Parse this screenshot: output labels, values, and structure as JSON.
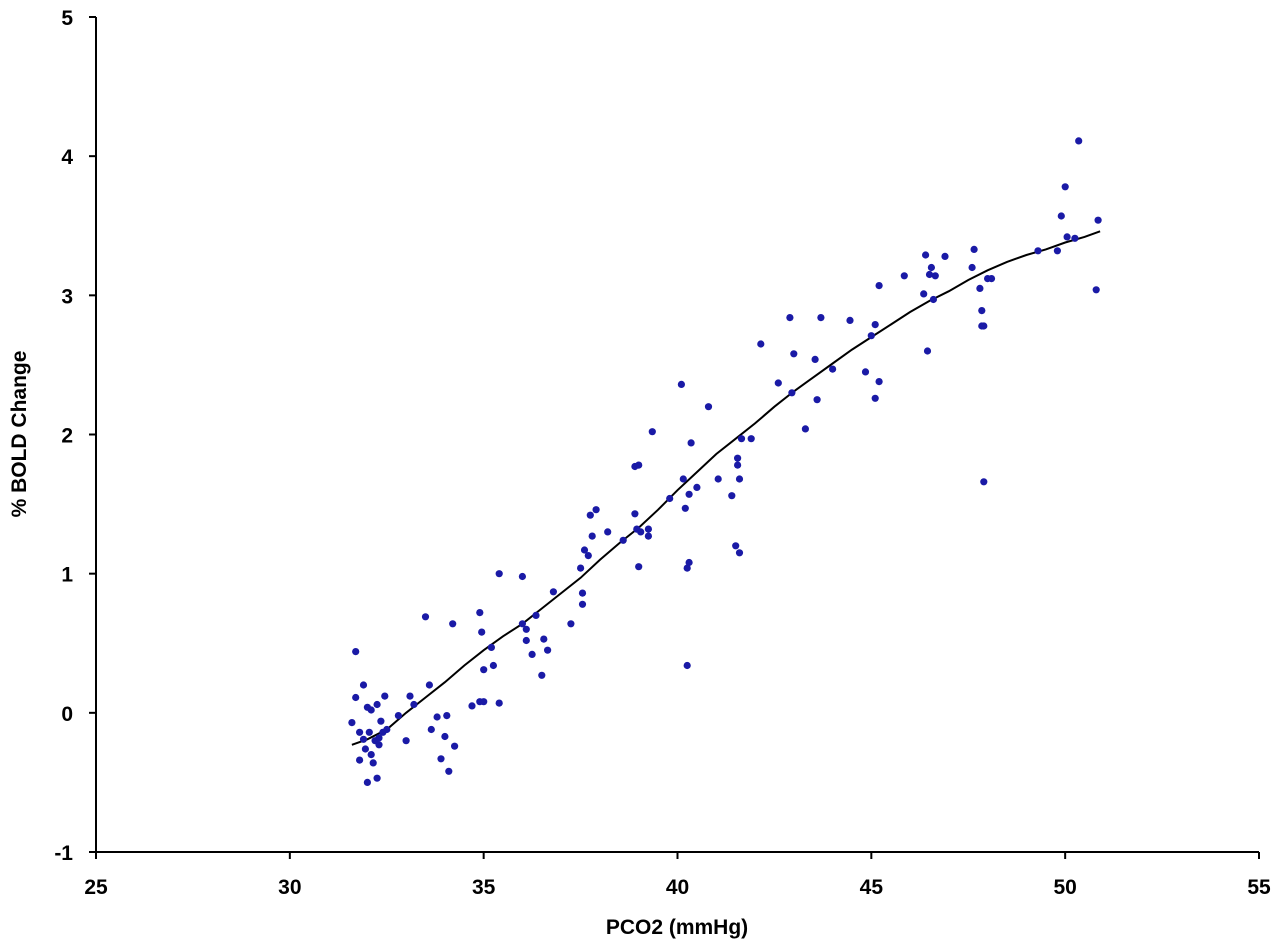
{
  "chart_data": {
    "type": "scatter",
    "title": "",
    "xlabel": "PCO2 (mmHg)",
    "ylabel": "% BOLD Change",
    "xlim": [
      25,
      55
    ],
    "ylim": [
      -1,
      5
    ],
    "x_ticks": [
      "25",
      "30",
      "35",
      "40",
      "45",
      "50",
      "55"
    ],
    "y_ticks": [
      "-1",
      "0",
      "1",
      "2",
      "3",
      "4",
      "5"
    ],
    "grid": false,
    "legend": "none",
    "marker_color": "#1a1aa6",
    "line_color": "#000000",
    "series": [
      {
        "kind": "points",
        "points": [
          [
            31.6,
            -0.07
          ],
          [
            31.7,
            0.44
          ],
          [
            31.7,
            0.11
          ],
          [
            31.8,
            -0.34
          ],
          [
            31.8,
            -0.14
          ],
          [
            31.9,
            0.2
          ],
          [
            31.9,
            -0.19
          ],
          [
            31.95,
            -0.26
          ],
          [
            32.0,
            0.04
          ],
          [
            32.0,
            -0.5
          ],
          [
            32.05,
            -0.14
          ],
          [
            32.1,
            -0.3
          ],
          [
            32.1,
            0.02
          ],
          [
            32.15,
            -0.36
          ],
          [
            32.2,
            -0.2
          ],
          [
            32.25,
            0.06
          ],
          [
            32.25,
            -0.47
          ],
          [
            32.3,
            -0.18
          ],
          [
            32.3,
            -0.23
          ],
          [
            32.35,
            -0.06
          ],
          [
            32.4,
            -0.14
          ],
          [
            32.45,
            0.12
          ],
          [
            32.5,
            -0.12
          ],
          [
            32.8,
            -0.02
          ],
          [
            33.0,
            -0.2
          ],
          [
            33.1,
            0.12
          ],
          [
            33.2,
            0.06
          ],
          [
            33.5,
            0.69
          ],
          [
            33.6,
            0.2
          ],
          [
            33.65,
            -0.12
          ],
          [
            33.8,
            -0.03
          ],
          [
            33.9,
            -0.33
          ],
          [
            34.0,
            -0.17
          ],
          [
            34.05,
            -0.02
          ],
          [
            34.1,
            -0.42
          ],
          [
            34.2,
            0.64
          ],
          [
            34.25,
            -0.24
          ],
          [
            34.7,
            0.05
          ],
          [
            34.9,
            0.72
          ],
          [
            34.9,
            0.08
          ],
          [
            34.95,
            0.58
          ],
          [
            35.0,
            0.08
          ],
          [
            35.0,
            0.31
          ],
          [
            35.2,
            0.47
          ],
          [
            35.25,
            0.34
          ],
          [
            35.4,
            0.07
          ],
          [
            35.4,
            1.0
          ],
          [
            36.0,
            0.98
          ],
          [
            36.0,
            0.64
          ],
          [
            36.1,
            0.6
          ],
          [
            36.1,
            0.52
          ],
          [
            36.25,
            0.42
          ],
          [
            36.35,
            0.7
          ],
          [
            36.5,
            0.27
          ],
          [
            36.55,
            0.53
          ],
          [
            36.65,
            0.45
          ],
          [
            36.8,
            0.87
          ],
          [
            37.25,
            0.64
          ],
          [
            37.5,
            1.04
          ],
          [
            37.55,
            0.86
          ],
          [
            37.55,
            0.78
          ],
          [
            37.6,
            1.17
          ],
          [
            37.7,
            1.13
          ],
          [
            37.75,
            1.42
          ],
          [
            37.8,
            1.27
          ],
          [
            37.9,
            1.46
          ],
          [
            38.2,
            1.3
          ],
          [
            38.6,
            1.24
          ],
          [
            38.9,
            1.43
          ],
          [
            38.9,
            1.77
          ],
          [
            38.95,
            1.32
          ],
          [
            39.0,
            1.78
          ],
          [
            39.0,
            1.05
          ],
          [
            39.05,
            1.3
          ],
          [
            39.25,
            1.32
          ],
          [
            39.25,
            1.27
          ],
          [
            39.35,
            2.02
          ],
          [
            39.8,
            1.54
          ],
          [
            40.1,
            2.36
          ],
          [
            40.15,
            1.68
          ],
          [
            40.2,
            1.47
          ],
          [
            40.25,
            1.04
          ],
          [
            40.25,
            0.34
          ],
          [
            40.3,
            1.08
          ],
          [
            40.3,
            1.57
          ],
          [
            40.35,
            1.94
          ],
          [
            40.5,
            1.62
          ],
          [
            40.8,
            2.2
          ],
          [
            41.05,
            1.68
          ],
          [
            41.4,
            1.56
          ],
          [
            41.5,
            1.2
          ],
          [
            41.55,
            1.83
          ],
          [
            41.55,
            1.78
          ],
          [
            41.6,
            1.68
          ],
          [
            41.6,
            1.15
          ],
          [
            41.65,
            1.97
          ],
          [
            41.9,
            1.97
          ],
          [
            42.15,
            2.65
          ],
          [
            42.6,
            2.37
          ],
          [
            42.9,
            2.84
          ],
          [
            42.95,
            2.3
          ],
          [
            43.0,
            2.58
          ],
          [
            43.3,
            2.04
          ],
          [
            43.55,
            2.54
          ],
          [
            43.6,
            2.25
          ],
          [
            43.7,
            2.84
          ],
          [
            44.0,
            2.47
          ],
          [
            44.45,
            2.82
          ],
          [
            44.85,
            2.45
          ],
          [
            45.0,
            2.71
          ],
          [
            45.1,
            2.79
          ],
          [
            45.1,
            2.26
          ],
          [
            45.2,
            2.38
          ],
          [
            45.2,
            3.07
          ],
          [
            45.85,
            3.14
          ],
          [
            46.35,
            3.01
          ],
          [
            46.4,
            3.29
          ],
          [
            46.45,
            2.6
          ],
          [
            46.5,
            3.15
          ],
          [
            46.55,
            3.2
          ],
          [
            46.6,
            2.97
          ],
          [
            46.65,
            3.14
          ],
          [
            46.9,
            3.28
          ],
          [
            47.6,
            3.2
          ],
          [
            47.65,
            3.33
          ],
          [
            47.8,
            3.05
          ],
          [
            47.85,
            2.78
          ],
          [
            47.85,
            2.89
          ],
          [
            47.9,
            2.78
          ],
          [
            47.9,
            1.66
          ],
          [
            48.0,
            3.12
          ],
          [
            48.1,
            3.12
          ],
          [
            49.3,
            3.32
          ],
          [
            49.8,
            3.32
          ],
          [
            49.9,
            3.57
          ],
          [
            50.0,
            3.78
          ],
          [
            50.05,
            3.42
          ],
          [
            50.25,
            3.41
          ],
          [
            50.35,
            4.11
          ],
          [
            50.8,
            3.04
          ],
          [
            50.85,
            3.54
          ]
        ]
      },
      {
        "kind": "fit",
        "points": [
          [
            31.6,
            -0.23
          ],
          [
            32.0,
            -0.19
          ],
          [
            32.5,
            -0.12
          ],
          [
            33.0,
            0.0
          ],
          [
            33.5,
            0.11
          ],
          [
            34.0,
            0.22
          ],
          [
            34.5,
            0.34
          ],
          [
            35.0,
            0.45
          ],
          [
            35.5,
            0.55
          ],
          [
            36.0,
            0.64
          ],
          [
            36.5,
            0.75
          ],
          [
            37.0,
            0.86
          ],
          [
            37.5,
            0.97
          ],
          [
            38.0,
            1.1
          ],
          [
            38.5,
            1.22
          ],
          [
            39.0,
            1.33
          ],
          [
            39.5,
            1.46
          ],
          [
            40.0,
            1.6
          ],
          [
            40.5,
            1.73
          ],
          [
            41.0,
            1.86
          ],
          [
            41.5,
            1.97
          ],
          [
            42.0,
            2.08
          ],
          [
            42.5,
            2.2
          ],
          [
            43.0,
            2.31
          ],
          [
            43.5,
            2.41
          ],
          [
            44.0,
            2.51
          ],
          [
            44.5,
            2.61
          ],
          [
            45.0,
            2.7
          ],
          [
            45.5,
            2.79
          ],
          [
            46.0,
            2.88
          ],
          [
            46.5,
            2.96
          ],
          [
            47.0,
            3.03
          ],
          [
            47.5,
            3.11
          ],
          [
            48.0,
            3.18
          ],
          [
            48.5,
            3.24
          ],
          [
            49.0,
            3.29
          ],
          [
            49.5,
            3.33
          ],
          [
            50.0,
            3.38
          ],
          [
            50.5,
            3.42
          ],
          [
            50.9,
            3.46
          ]
        ]
      }
    ]
  }
}
